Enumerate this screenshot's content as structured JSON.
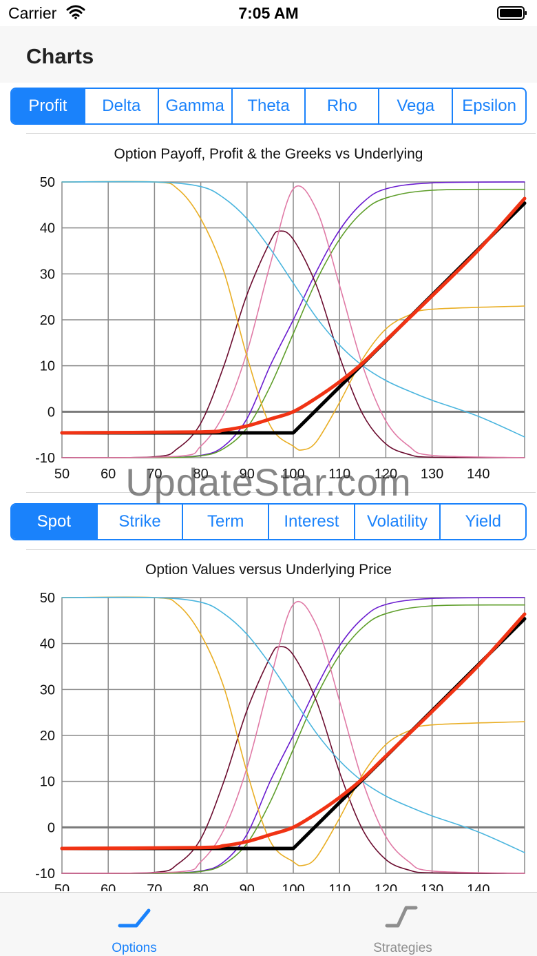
{
  "status_bar": {
    "carrier": "Carrier",
    "time": "7:05 AM"
  },
  "nav": {
    "title": "Charts"
  },
  "greek_tabs": {
    "items": [
      "Profit",
      "Delta",
      "Gamma",
      "Theta",
      "Rho",
      "Vega",
      "Epsilon"
    ],
    "selected": "Profit"
  },
  "variable_tabs": {
    "items": [
      "Spot",
      "Strike",
      "Term",
      "Interest",
      "Volatility",
      "Yield"
    ],
    "selected": "Spot"
  },
  "watermark": "UpdateStar.com",
  "colors": {
    "accent": "#1a82fb",
    "profit": "#f03314",
    "payoff": "#000000",
    "delta": "#6a1ccf",
    "rho": "#5e9e2a",
    "gamma": "#6b0c2f",
    "vega": "#e07aa6",
    "theta": "#e9ae24",
    "price": "#4ab5de"
  },
  "charts": [
    {
      "title": "Option Payoff, Profit & the Greeks vs Underlying"
    },
    {
      "title": "Option Values versus Underlying Price"
    }
  ],
  "chart_data": {
    "type": "line",
    "xlim": [
      50,
      150
    ],
    "ylim": [
      -10,
      50
    ],
    "x_ticks": [
      50,
      60,
      70,
      80,
      90,
      100,
      110,
      120,
      130,
      140
    ],
    "y_ticks": [
      50,
      40,
      30,
      20,
      10,
      0,
      -10
    ],
    "grid": true,
    "series": [
      {
        "x": [
          50,
          80,
          85,
          90,
          95,
          100,
          105,
          110,
          115,
          120,
          130,
          140,
          150
        ],
        "values": [
          -4.6,
          -4.4,
          -4.0,
          -3.1,
          -1.6,
          0.0,
          3.0,
          6.5,
          10.6,
          15.5,
          25.2,
          35.2,
          46.4
        ]
      },
      {
        "x": [
          50,
          100,
          150
        ],
        "values": [
          -4.6,
          -4.6,
          45.4
        ]
      },
      {
        "x": [
          50,
          70,
          80,
          85,
          90,
          95,
          100,
          105,
          110,
          115,
          120,
          130,
          150
        ],
        "values": [
          -10,
          -10,
          -9.5,
          -7.5,
          -1.5,
          10.0,
          20.0,
          30.5,
          39.5,
          45.5,
          48.5,
          49.8,
          50
        ]
      },
      {
        "x": [
          50,
          70,
          80,
          85,
          90,
          95,
          100,
          105,
          110,
          115,
          120,
          130,
          150
        ],
        "values": [
          -10,
          -10,
          -9.6,
          -8.0,
          -3.5,
          5.5,
          17.0,
          28.5,
          37.5,
          43.5,
          46.5,
          48.2,
          48.4
        ]
      },
      {
        "x": [
          50,
          70,
          75,
          80,
          85,
          90,
          95,
          97,
          100,
          105,
          110,
          115,
          120,
          125,
          130,
          150
        ],
        "values": [
          -10,
          -9.8,
          -8.0,
          -2.5,
          10.0,
          25.5,
          37.0,
          39.3,
          37.5,
          27.5,
          12.0,
          -0.5,
          -7.0,
          -9.3,
          -9.9,
          -10
        ]
      },
      {
        "x": [
          50,
          75,
          80,
          85,
          90,
          95,
          100,
          105,
          110,
          115,
          120,
          125,
          130,
          150
        ],
        "values": [
          -10,
          -9.7,
          -7.5,
          -0.5,
          13.0,
          32.0,
          48.5,
          44.0,
          27.5,
          10.0,
          -2.0,
          -7.5,
          -9.5,
          -10
        ]
      },
      {
        "x": [
          50,
          70,
          75,
          80,
          85,
          90,
          95,
          100,
          102,
          105,
          110,
          115,
          120,
          125,
          130,
          150
        ],
        "values": [
          50,
          50,
          48.5,
          42.0,
          30.5,
          12.0,
          -3.0,
          -7.5,
          -8.3,
          -6.5,
          2.0,
          11.5,
          18.0,
          21.0,
          22.3,
          23.0
        ]
      },
      {
        "x": [
          50,
          70,
          80,
          85,
          90,
          95,
          100,
          105,
          110,
          115,
          120,
          125,
          130,
          140,
          150
        ],
        "values": [
          50,
          50,
          49.0,
          46.5,
          42.0,
          35.5,
          28.0,
          20.5,
          14.5,
          10.0,
          6.8,
          4.5,
          2.5,
          -1.0,
          -5.5
        ]
      }
    ]
  },
  "tab_bar": {
    "items": [
      {
        "label": "Options",
        "icon": "options-icon",
        "selected": true
      },
      {
        "label": "Strategies",
        "icon": "strategies-icon",
        "selected": false
      }
    ]
  }
}
